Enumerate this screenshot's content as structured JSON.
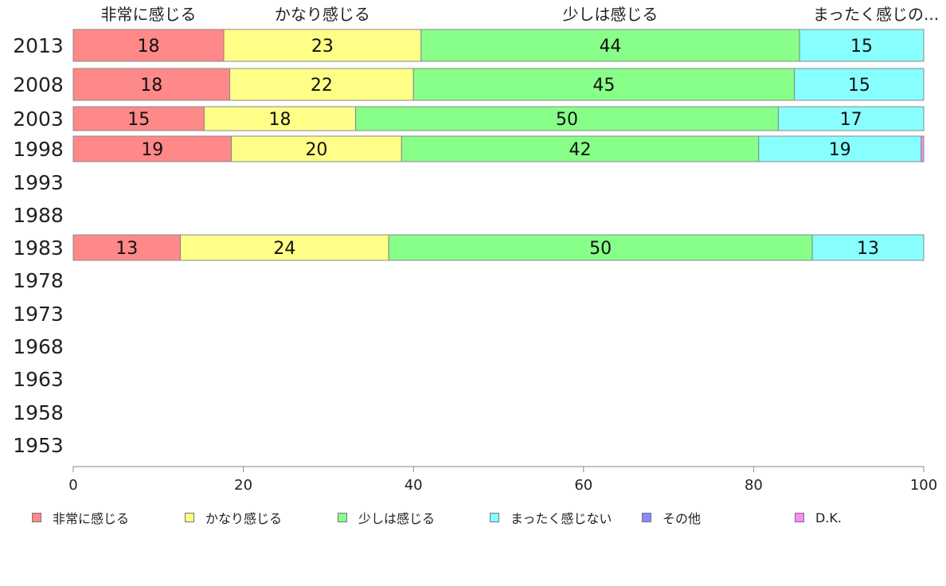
{
  "chart_data": {
    "type": "bar",
    "orientation": "horizontal",
    "stacked": true,
    "categories": [
      "2013",
      "2008",
      "2003",
      "1998",
      "1993",
      "1988",
      "1983",
      "1978",
      "1973",
      "1968",
      "1963",
      "1958",
      "1953"
    ],
    "series": [
      {
        "name": "非常に感じる",
        "color": "#ff8888",
        "values": [
          17.7,
          18.4,
          15.4,
          18.6,
          null,
          null,
          12.6,
          null,
          null,
          null,
          null,
          null,
          null
        ],
        "labels": [
          "18",
          "18",
          "15",
          "19",
          "",
          "",
          "13",
          "",
          "",
          "",
          "",
          "",
          ""
        ]
      },
      {
        "name": "かなり感じる",
        "color": "#ffff88",
        "values": [
          23.2,
          21.6,
          17.8,
          20.0,
          null,
          null,
          24.5,
          null,
          null,
          null,
          null,
          null,
          null
        ],
        "labels": [
          "23",
          "22",
          "18",
          "20",
          "",
          "",
          "24",
          "",
          "",
          "",
          "",
          "",
          ""
        ]
      },
      {
        "name": "少しは感じる",
        "color": "#88ff88",
        "values": [
          44.5,
          44.8,
          49.7,
          42.0,
          null,
          null,
          49.8,
          null,
          null,
          null,
          null,
          null,
          null
        ],
        "labels": [
          "44",
          "45",
          "50",
          "42",
          "",
          "",
          "50",
          "",
          "",
          "",
          "",
          "",
          ""
        ]
      },
      {
        "name": "まったく感じない",
        "color": "#88ffff",
        "values": [
          14.6,
          15.2,
          17.1,
          19.1,
          null,
          null,
          13.1,
          null,
          null,
          null,
          null,
          null,
          null
        ],
        "labels": [
          "15",
          "15",
          "17",
          "19",
          "",
          "",
          "13",
          "",
          "",
          "",
          "",
          "",
          ""
        ]
      },
      {
        "name": "その他",
        "color": "#8888ff",
        "values": [
          0,
          0,
          0,
          0,
          null,
          null,
          0,
          null,
          null,
          null,
          null,
          null,
          null
        ],
        "labels": [
          "",
          "",
          "",
          "",
          "",
          "",
          "",
          "",
          "",
          "",
          "",
          "",
          ""
        ]
      },
      {
        "name": "D.K.",
        "color": "#ff88ff",
        "values": [
          0,
          0,
          0,
          0.3,
          null,
          null,
          0,
          null,
          null,
          null,
          null,
          null,
          null
        ],
        "labels": [
          "",
          "",
          "",
          "",
          "",
          "",
          "",
          "",
          "",
          "",
          "",
          "",
          ""
        ]
      }
    ],
    "xlim": [
      0,
      100
    ],
    "xticks": [
      "0",
      "20",
      "40",
      "60",
      "80",
      "100"
    ],
    "top_labels": [
      "非常に感じる",
      "かなり感じる",
      "少しは感じる",
      "まったく感じの..."
    ],
    "legend_position": "bottom",
    "grid": false
  }
}
